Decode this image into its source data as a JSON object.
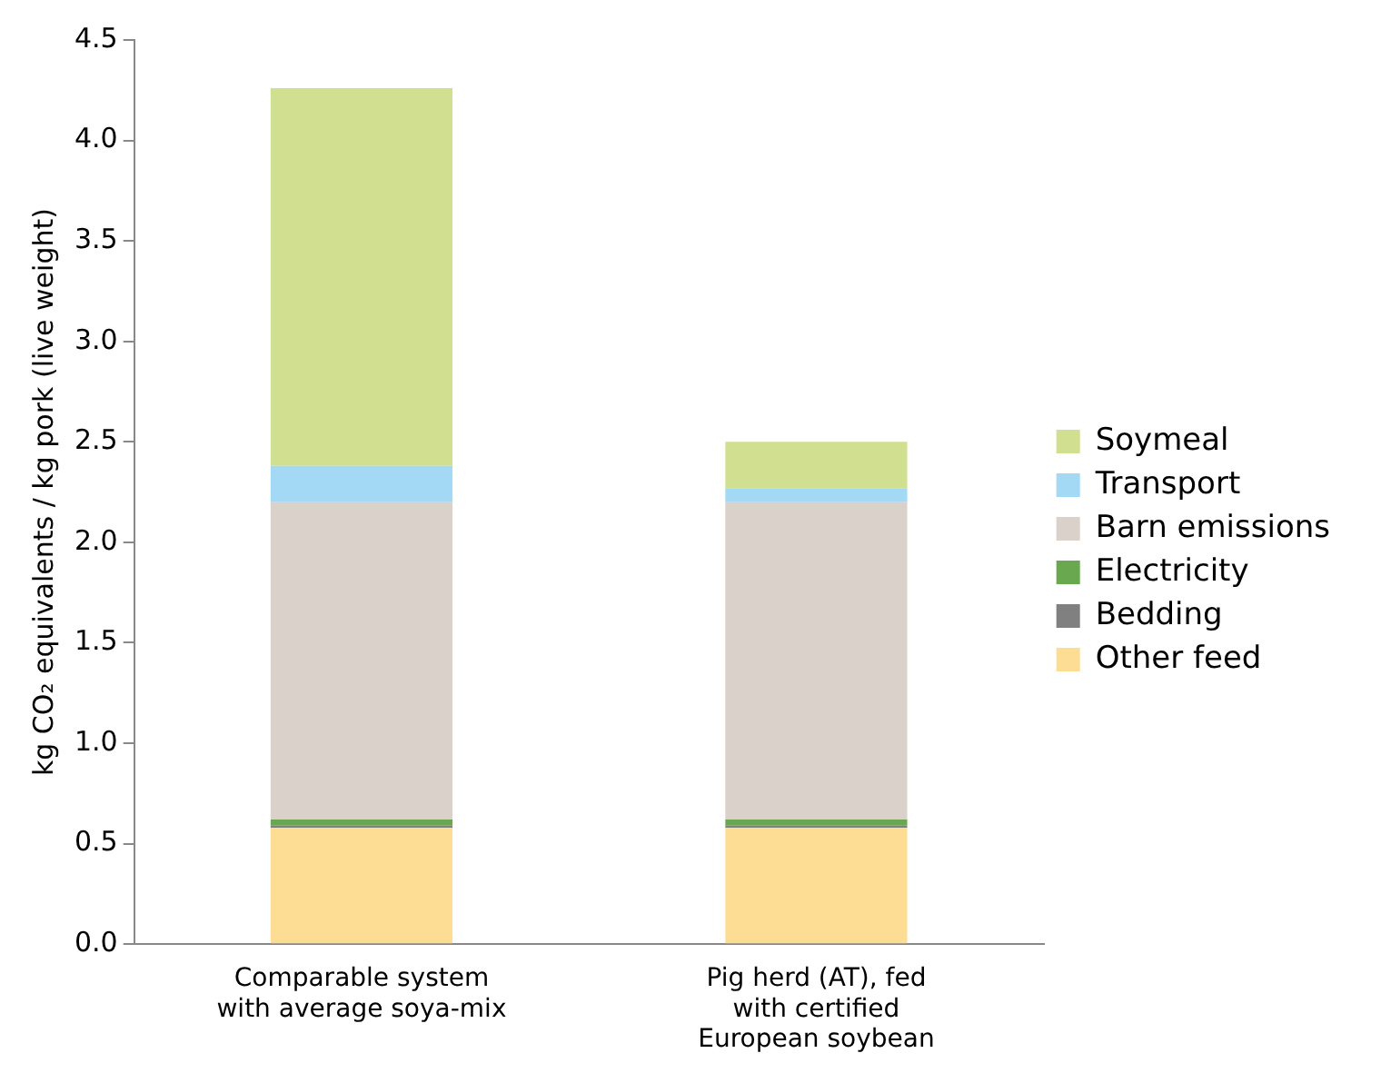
{
  "chart_data": {
    "type": "bar",
    "stacked": true,
    "ylabel": "kg CO₂ equivalents / kg pork (live weight)",
    "categories": [
      "Comparable system with average soya-mix",
      "Pig herd (AT), fed with certified European soybean"
    ],
    "series": [
      {
        "name": "Other feed",
        "color": "#fddc94",
        "values": [
          0.58,
          0.58
        ]
      },
      {
        "name": "Bedding",
        "color": "#808080",
        "values": [
          0.01,
          0.01
        ]
      },
      {
        "name": "Electricity",
        "color": "#6aa84f",
        "values": [
          0.03,
          0.03
        ]
      },
      {
        "name": "Barn emissions",
        "color": "#d9d1ca",
        "values": [
          1.58,
          1.58
        ]
      },
      {
        "name": "Transport",
        "color": "#a3d9f5",
        "values": [
          0.18,
          0.07
        ]
      },
      {
        "name": "Soymeal",
        "color": "#d1df90",
        "values": [
          1.88,
          0.23
        ]
      }
    ],
    "ylim": [
      0,
      4.5
    ],
    "yticks": [
      {
        "value": 0,
        "label": "0.0"
      },
      {
        "value": 0.5,
        "label": "0.5"
      },
      {
        "value": 1,
        "label": "1.0"
      },
      {
        "value": 1.5,
        "label": "1.5"
      },
      {
        "value": 2,
        "label": "2.0"
      },
      {
        "value": 2.5,
        "label": "2.5"
      },
      {
        "value": 3,
        "label": "3.0"
      },
      {
        "value": 3.5,
        "label": "3.5"
      },
      {
        "value": 4,
        "label": "4.0"
      },
      {
        "value": 4.5,
        "label": "4.5"
      }
    ],
    "grid": false,
    "legend": "right"
  }
}
